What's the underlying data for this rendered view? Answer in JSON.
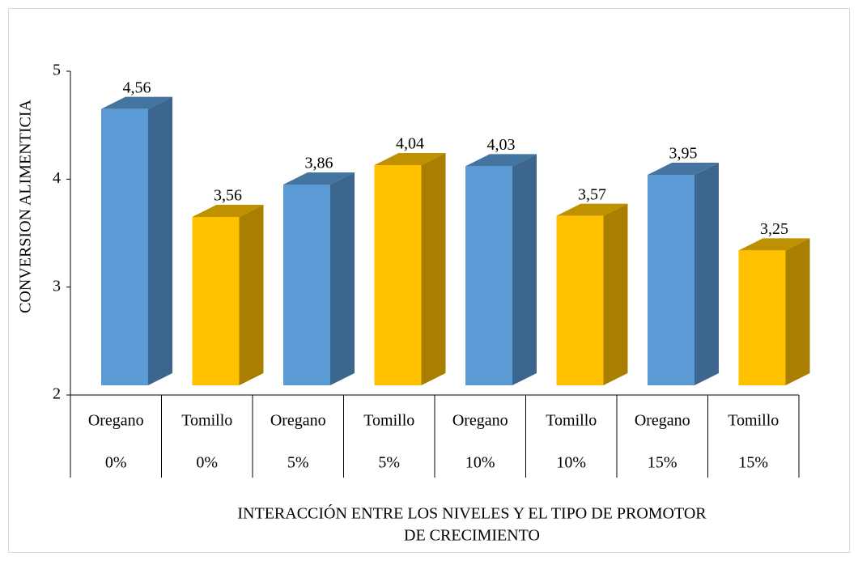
{
  "chart_data": {
    "type": "bar3d",
    "y_label": "CONVERSION ALIMENTICIA",
    "x_label": [
      "INTERACCIÓN ENTRE LOS NIVELES Y EL  TIPO DE PROMOTOR",
      "DE CRECIMIENTO"
    ],
    "categories": [
      [
        "Oregano",
        "0%"
      ],
      [
        "Tomillo",
        "0%"
      ],
      [
        "Oregano",
        "5%"
      ],
      [
        "Tomillo",
        "5%"
      ],
      [
        "Oregano",
        "10%"
      ],
      [
        "Tomillo",
        "10%"
      ],
      [
        "Oregano",
        "15%"
      ],
      [
        "Tomillo",
        "15%"
      ]
    ],
    "values": [
      4.56,
      3.56,
      3.86,
      4.04,
      4.03,
      3.57,
      3.95,
      3.25
    ],
    "value_labels": [
      "4,56",
      "3,56",
      "3,86",
      "4,04",
      "4,03",
      "3,57",
      "3,95",
      "3,25"
    ],
    "colors": [
      "#5b9bd5",
      "#ffc000",
      "#5b9bd5",
      "#ffc000",
      "#5b9bd5",
      "#ffc000",
      "#5b9bd5",
      "#ffc000"
    ],
    "ylim": [
      2,
      5
    ],
    "yticks": [
      2,
      3,
      4,
      5
    ],
    "grid": false
  }
}
